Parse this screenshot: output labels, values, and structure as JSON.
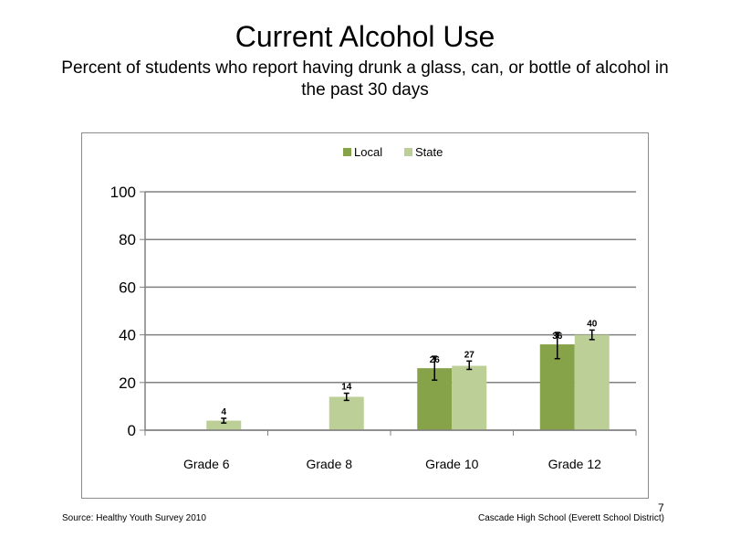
{
  "title": "Current Alcohol Use",
  "subtitle": "Percent of students who report having drunk a glass, can, or bottle of alcohol in the past 30 days",
  "footer": {
    "source": "Source: Healthy Youth Survey 2010",
    "school": "Cascade High School (Everett School District)",
    "slide_number": "7"
  },
  "chart_data": {
    "type": "bar",
    "categories": [
      "Grade 6",
      "Grade 8",
      "Grade 10",
      "Grade 12"
    ],
    "series": [
      {
        "name": "Local",
        "color": "#86a34a",
        "values": [
          null,
          null,
          26,
          36
        ],
        "error_low": [
          null,
          null,
          21,
          30
        ],
        "error_high": [
          null,
          null,
          31,
          41
        ]
      },
      {
        "name": "State",
        "color": "#bccf96",
        "values": [
          4,
          14,
          27,
          40
        ],
        "error_low": [
          3,
          12.5,
          25.5,
          38
        ],
        "error_high": [
          5,
          15.5,
          29,
          42
        ]
      }
    ],
    "ylim": [
      0,
      100
    ],
    "yticks": [
      0,
      20,
      40,
      60,
      80,
      100
    ],
    "grid": true,
    "legend_position": "top"
  }
}
